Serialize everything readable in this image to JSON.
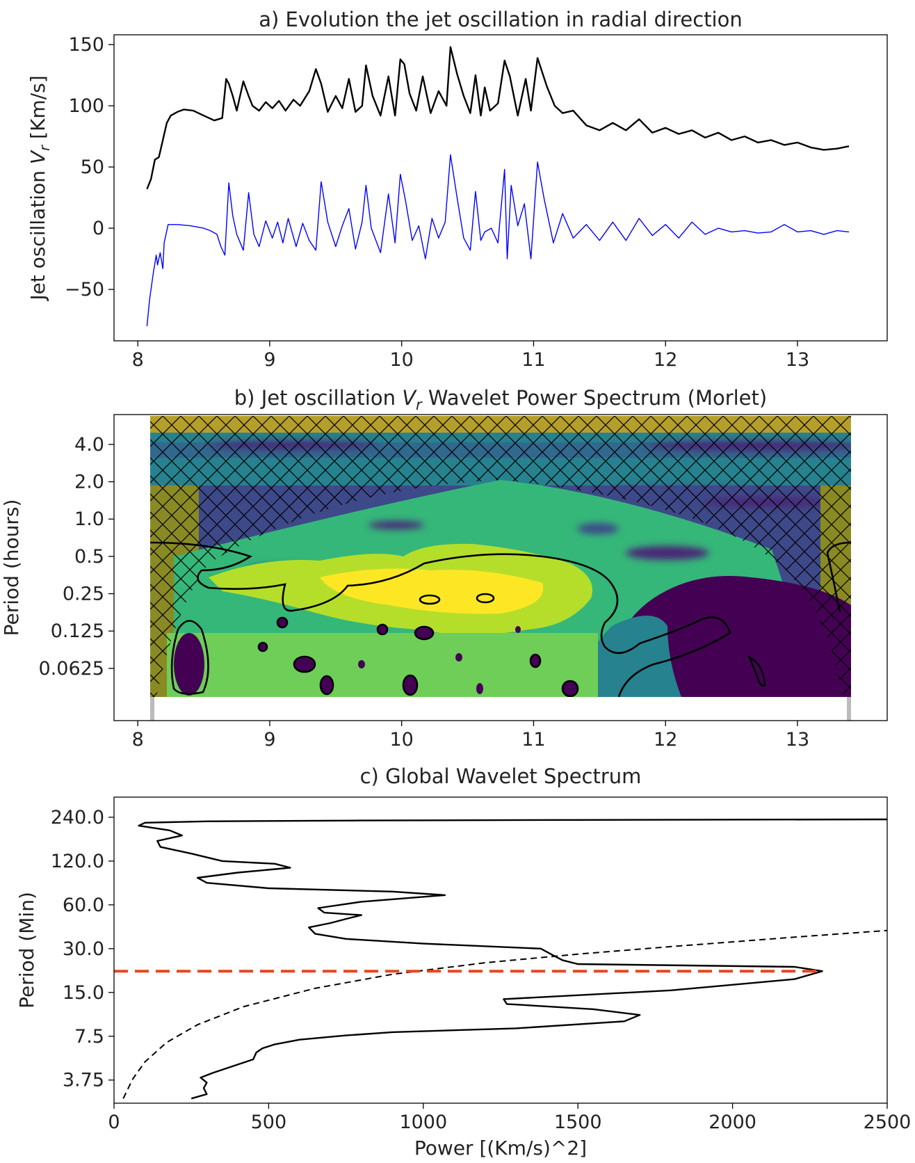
{
  "colors": {
    "series_top": "#000000",
    "series_bottom": "#0000ff",
    "peak_line": "#e8471c",
    "significance": "#000000",
    "viridis": [
      "#440154",
      "#482878",
      "#3e4989",
      "#31688e",
      "#26828e",
      "#1f9e89",
      "#35b779",
      "#6ece58",
      "#b5de2b",
      "#fde725"
    ]
  },
  "chart_data": [
    {
      "id": "a",
      "type": "line",
      "title_prefix": "a) Evolution the jet oscillation in radial direction",
      "ylabel_prefix": "Jet oscillation ",
      "ylabel_var": "V",
      "ylabel_sub": "r",
      "ylabel_suffix": " [Km/s]",
      "xlim": [
        7.82,
        13.68
      ],
      "ylim": [
        -92,
        158
      ],
      "xticks": [
        "8",
        "9",
        "10",
        "11",
        "12",
        "13"
      ],
      "yticks": [
        "150",
        "100",
        "50",
        "0",
        "−50"
      ],
      "ytick_values": [
        150,
        100,
        50,
        0,
        -50
      ],
      "series": [
        {
          "color": "#000000",
          "x": [
            8.07,
            8.1,
            8.13,
            8.16,
            8.19,
            8.22,
            8.25,
            8.3,
            8.35,
            8.42,
            8.5,
            8.58,
            8.64,
            8.67,
            8.69,
            8.72,
            8.75,
            8.8,
            8.84,
            8.87,
            8.92,
            8.97,
            9.02,
            9.07,
            9.12,
            9.18,
            9.23,
            9.3,
            9.35,
            9.39,
            9.44,
            9.5,
            9.55,
            9.6,
            9.65,
            9.7,
            9.73,
            9.78,
            9.84,
            9.9,
            9.95,
            9.99,
            10.02,
            10.06,
            10.11,
            10.16,
            10.22,
            10.28,
            10.34,
            10.37,
            10.42,
            10.47,
            10.52,
            10.56,
            10.6,
            10.63,
            10.67,
            10.73,
            10.78,
            10.82,
            10.88,
            10.94,
            10.98,
            11.03,
            11.1,
            11.16,
            11.22,
            11.3,
            11.4,
            11.5,
            11.6,
            11.7,
            11.8,
            11.9,
            12.0,
            12.1,
            12.2,
            12.3,
            12.4,
            12.5,
            12.6,
            12.7,
            12.8,
            12.9,
            13.0,
            13.1,
            13.2,
            13.3,
            13.39
          ],
          "y": [
            32,
            40,
            56,
            58,
            72,
            86,
            92,
            95,
            97,
            96,
            92,
            88,
            90,
            122,
            118,
            108,
            96,
            120,
            108,
            100,
            96,
            103,
            98,
            104,
            96,
            105,
            100,
            112,
            130,
            118,
            95,
            108,
            98,
            122,
            95,
            100,
            133,
            108,
            92,
            124,
            92,
            138,
            134,
            110,
            96,
            124,
            94,
            112,
            100,
            148,
            126,
            108,
            94,
            125,
            92,
            115,
            96,
            102,
            137,
            124,
            92,
            122,
            96,
            139,
            116,
            100,
            94,
            96,
            84,
            80,
            86,
            80,
            89,
            78,
            82,
            77,
            80,
            74,
            78,
            72,
            75,
            70,
            72,
            68,
            70,
            66,
            64,
            65,
            67
          ]
        },
        {
          "color": "#0000ff",
          "x": [
            8.07,
            8.09,
            8.12,
            8.14,
            8.15,
            8.17,
            8.19,
            8.2,
            8.23,
            8.25,
            8.3,
            8.4,
            8.5,
            8.55,
            8.6,
            8.63,
            8.66,
            8.69,
            8.72,
            8.75,
            8.8,
            8.84,
            8.88,
            8.92,
            8.97,
            9.02,
            9.06,
            9.1,
            9.14,
            9.2,
            9.25,
            9.3,
            9.35,
            9.39,
            9.44,
            9.5,
            9.55,
            9.6,
            9.65,
            9.7,
            9.73,
            9.77,
            9.84,
            9.9,
            9.95,
            9.99,
            10.03,
            10.08,
            10.13,
            10.18,
            10.23,
            10.28,
            10.33,
            10.37,
            10.42,
            10.47,
            10.52,
            10.56,
            10.6,
            10.63,
            10.68,
            10.73,
            10.78,
            10.8,
            10.83,
            10.88,
            10.93,
            10.98,
            11.03,
            11.08,
            11.15,
            11.22,
            11.3,
            11.4,
            11.5,
            11.6,
            11.7,
            11.8,
            11.9,
            12.0,
            12.1,
            12.2,
            12.3,
            12.4,
            12.5,
            12.6,
            12.7,
            12.8,
            12.9,
            13.0,
            13.1,
            13.2,
            13.3,
            13.39
          ],
          "y": [
            -80,
            -58,
            -35,
            -22,
            -30,
            -20,
            -33,
            -12,
            3,
            3,
            3,
            2,
            0,
            -2,
            -5,
            -15,
            -22,
            37,
            10,
            -5,
            -18,
            29,
            -5,
            -15,
            6,
            -8,
            5,
            -12,
            8,
            -15,
            4,
            -10,
            -18,
            38,
            5,
            -15,
            2,
            16,
            -17,
            5,
            35,
            0,
            -20,
            28,
            -12,
            44,
            22,
            -10,
            2,
            -25,
            8,
            -8,
            5,
            60,
            25,
            -8,
            -18,
            30,
            -10,
            -3,
            0,
            -12,
            48,
            -25,
            35,
            2,
            20,
            -25,
            54,
            24,
            -12,
            12,
            -8,
            3,
            -10,
            5,
            -10,
            8,
            -6,
            3,
            -8,
            5,
            -5,
            0,
            -3,
            -2,
            -4,
            -3,
            3,
            -3,
            -2,
            -5,
            -2,
            -3
          ]
        }
      ]
    },
    {
      "id": "b",
      "type": "heatmap",
      "title_prefix": "b) Jet oscillation ",
      "title_var": "V",
      "title_sub": "r",
      "title_suffix": " Wavelet Power Spectrum (Morlet)",
      "ylabel": "Period (hours)",
      "xlim": [
        7.82,
        13.68
      ],
      "ylim_log2": [
        -5.4,
        2.8
      ],
      "xticks": [
        "8",
        "9",
        "10",
        "11",
        "12",
        "13"
      ],
      "yticks": [
        "4.0",
        "2.0",
        "1.0",
        "0.5",
        "0.25",
        "0.125",
        "0.0625"
      ],
      "ytick_values": [
        4.0,
        2.0,
        1.0,
        0.5,
        0.25,
        0.125,
        0.0625
      ],
      "data_x_range": [
        8.07,
        13.39
      ],
      "data_period_range_hours": [
        0.043,
        5.0
      ],
      "cone_of_influence": "cross-hatched",
      "significance_contours": "black"
    },
    {
      "id": "c",
      "type": "line",
      "title": "c) Global Wavelet Spectrum",
      "xlabel": "Power [(Km/s)^2]",
      "ylabel": "Period (Min)",
      "xlim": [
        0,
        2500
      ],
      "xticks": [
        "0",
        "500",
        "1000",
        "1500",
        "2000",
        "2500"
      ],
      "xtick_values": [
        0,
        500,
        1000,
        1500,
        2000,
        2500
      ],
      "yticks": [
        "240.0",
        "120.0",
        "60.0",
        "30.0",
        "15.0",
        "7.5",
        "3.75"
      ],
      "ytick_values": [
        240,
        120,
        60,
        30,
        15,
        7.5,
        3.75
      ],
      "ylim": [
        2.6,
        330
      ],
      "peak_period_min": 21,
      "series": [
        {
          "style": "solid",
          "color": "#000000",
          "power": [
            250,
            300,
            290,
            300,
            280,
            320,
            450,
            460,
            480,
            520,
            600,
            750,
            900,
            1300,
            1650,
            1700,
            1550,
            1270,
            1260,
            1800,
            2200,
            2290,
            2200,
            1500,
            1450,
            1420,
            1380,
            1000,
            750,
            650,
            630,
            700,
            750,
            800,
            680,
            660,
            800,
            1070,
            900,
            500,
            300,
            270,
            400,
            570,
            520,
            350,
            250,
            150,
            140,
            220,
            180,
            80,
            100,
            300,
            800,
            1500,
            2500
          ],
          "period_min": [
            2.8,
            3.0,
            3.3,
            3.6,
            3.9,
            4.2,
            5.2,
            5.8,
            6.2,
            6.6,
            7.1,
            7.6,
            8.0,
            8.5,
            9.5,
            10.5,
            11.5,
            12.5,
            13.5,
            15.5,
            18.5,
            21,
            22.5,
            23.5,
            25,
            27,
            30,
            32.5,
            35,
            38,
            42,
            45,
            48,
            51,
            53,
            57,
            63,
            70,
            74,
            78,
            85,
            92,
            100,
            108,
            115,
            120,
            135,
            150,
            165,
            180,
            195,
            210,
            220,
            225,
            228,
            230,
            232
          ]
        },
        {
          "style": "dashed",
          "color": "#000000",
          "power": [
            30,
            60,
            100,
            170,
            270,
            420,
            650,
            900,
            1200,
            1500,
            1800,
            2200,
            2500
          ],
          "period_min": [
            2.8,
            3.8,
            5.0,
            6.8,
            9.0,
            12,
            16,
            20,
            24,
            27.5,
            31,
            36,
            40
          ]
        }
      ]
    }
  ]
}
